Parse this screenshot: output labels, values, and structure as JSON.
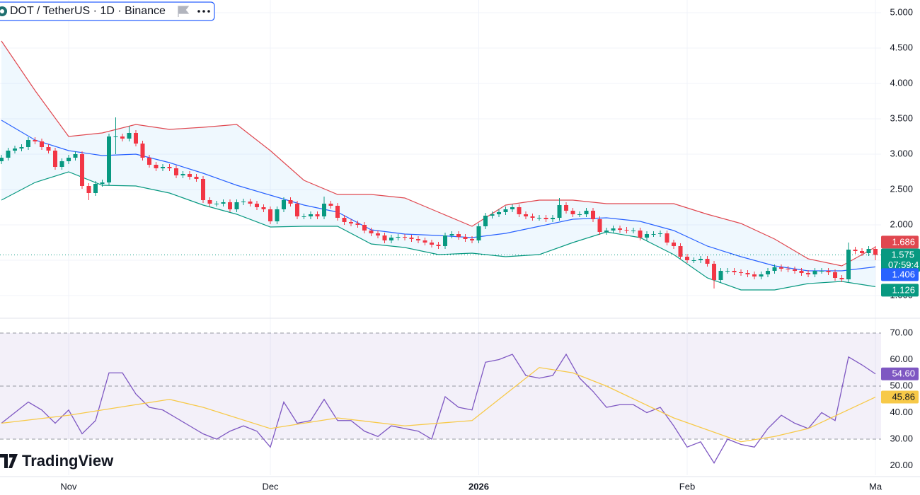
{
  "header": {
    "title": "DOT / TetherUS · 1D · Binance"
  },
  "logo": {
    "text": "TradingView"
  },
  "chart_data": [
    {
      "type": "candlestick",
      "up_color": "#089981",
      "down_color": "#f23645",
      "grid": true,
      "countdown": "07:59:4",
      "xlim": [
        -0.21,
        130.84
      ],
      "xticks": [
        {
          "value": 10,
          "label": "Nov"
        },
        {
          "value": 40,
          "label": "Dec"
        },
        {
          "value": 71,
          "label": "2026"
        },
        {
          "value": 102,
          "label": "Feb"
        },
        {
          "value": 130,
          "label": "Ma"
        }
      ],
      "ylim": [
        0.7,
        5.18
      ],
      "yticks": [
        {
          "value": 1,
          "label": "1.000"
        },
        {
          "value": 1.5,
          "label": "1.500"
        },
        {
          "value": 2,
          "label": "2.000"
        },
        {
          "value": 2.5,
          "label": "2.500"
        },
        {
          "value": 3,
          "label": "3.000"
        },
        {
          "value": 3.5,
          "label": "3.500"
        },
        {
          "value": 4,
          "label": "4.000"
        },
        {
          "value": 4.5,
          "label": "4.500"
        },
        {
          "value": 5,
          "label": "5.000"
        }
      ],
      "open": [
        2.9,
        2.95,
        3.05,
        3.08,
        3.1,
        3.2,
        3.18,
        3.1,
        3.05,
        2.82,
        2.9,
        2.95,
        3.0,
        2.55,
        2.45,
        2.58,
        2.6,
        3.25,
        3.25,
        3.22,
        3.3,
        3.15,
        2.95,
        2.85,
        2.8,
        2.82,
        2.8,
        2.7,
        2.72,
        2.68,
        2.65,
        2.35,
        2.3,
        2.3,
        2.32,
        2.22,
        2.32,
        2.33,
        2.3,
        2.25,
        2.22,
        2.05,
        2.22,
        2.35,
        2.3,
        2.12,
        2.12,
        2.15,
        2.12,
        2.3,
        2.27,
        2.1,
        2.04,
        2.02,
        2.0,
        1.92,
        1.88,
        1.85,
        1.78,
        1.82,
        1.83,
        1.82,
        1.8,
        1.78,
        1.75,
        1.72,
        1.7,
        1.85,
        1.87,
        1.83,
        1.8,
        1.78,
        1.98,
        2.13,
        2.15,
        2.18,
        2.22,
        2.25,
        2.15,
        2.12,
        2.1,
        2.1,
        2.08,
        2.1,
        2.28,
        2.2,
        2.15,
        2.15,
        2.2,
        2.08,
        1.9,
        1.92,
        1.95,
        1.93,
        1.92,
        1.92,
        1.82,
        1.87,
        1.87,
        1.88,
        1.75,
        1.7,
        1.55,
        1.5,
        1.5,
        1.52,
        1.45,
        1.22,
        1.35,
        1.35,
        1.33,
        1.32,
        1.3,
        1.27,
        1.3,
        1.35,
        1.4,
        1.38,
        1.37,
        1.35,
        1.32,
        1.3,
        1.35,
        1.35,
        1.33,
        1.25,
        1.23,
        1.65,
        1.63,
        1.6,
        1.66
      ],
      "high": [
        2.99,
        3.09,
        3.12,
        3.14,
        3.24,
        3.24,
        3.22,
        3.14,
        3.09,
        2.94,
        2.99,
        3.04,
        3.04,
        2.59,
        2.62,
        2.64,
        3.29,
        3.52,
        3.29,
        3.4,
        3.34,
        3.19,
        2.99,
        2.89,
        2.86,
        2.86,
        2.84,
        2.76,
        2.76,
        2.72,
        2.69,
        2.39,
        2.34,
        2.36,
        2.36,
        2.36,
        2.37,
        2.37,
        2.34,
        2.29,
        2.26,
        2.26,
        2.39,
        2.39,
        2.34,
        2.16,
        2.19,
        2.19,
        2.4,
        2.34,
        2.31,
        2.14,
        2.08,
        2.06,
        2.04,
        1.96,
        1.92,
        1.89,
        1.86,
        1.87,
        1.87,
        1.86,
        1.84,
        1.82,
        1.79,
        1.76,
        1.89,
        1.91,
        1.91,
        1.87,
        1.84,
        2.02,
        2.17,
        2.19,
        2.22,
        2.26,
        2.29,
        2.29,
        2.19,
        2.16,
        2.14,
        2.14,
        2.14,
        2.38,
        2.32,
        2.24,
        2.19,
        2.24,
        2.24,
        2.12,
        1.96,
        1.99,
        1.99,
        1.97,
        1.96,
        1.96,
        1.91,
        1.91,
        1.92,
        1.92,
        1.79,
        1.74,
        1.59,
        1.54,
        1.56,
        1.56,
        1.49,
        1.39,
        1.39,
        1.39,
        1.37,
        1.36,
        1.34,
        1.34,
        1.39,
        1.44,
        1.44,
        1.42,
        1.41,
        1.39,
        1.36,
        1.39,
        1.39,
        1.39,
        1.37,
        1.29,
        1.75,
        1.69,
        1.67,
        1.7,
        1.7
      ],
      "low": [
        2.86,
        2.91,
        3.01,
        3.04,
        3.06,
        3.14,
        3.06,
        3.01,
        2.78,
        2.78,
        2.86,
        2.91,
        2.51,
        2.35,
        2.41,
        2.54,
        2.56,
        3.0,
        3.18,
        3.18,
        3.11,
        2.91,
        2.81,
        2.76,
        2.76,
        2.76,
        2.66,
        2.66,
        2.64,
        2.61,
        2.31,
        2.26,
        2.26,
        2.26,
        2.18,
        2.18,
        2.28,
        2.26,
        2.21,
        2.18,
        2.01,
        2.01,
        2.18,
        2.26,
        2.08,
        2.08,
        2.08,
        2.08,
        2.08,
        2.23,
        2.06,
        2.0,
        1.98,
        1.96,
        1.88,
        1.84,
        1.81,
        1.74,
        1.74,
        1.78,
        1.78,
        1.76,
        1.74,
        1.71,
        1.68,
        1.66,
        1.66,
        1.81,
        1.79,
        1.76,
        1.74,
        1.74,
        1.94,
        2.09,
        2.11,
        2.14,
        2.18,
        2.11,
        2.08,
        2.06,
        2.06,
        2.04,
        2.04,
        2.06,
        2.16,
        2.11,
        2.11,
        2.11,
        2.04,
        1.86,
        1.86,
        1.88,
        1.89,
        1.88,
        1.88,
        1.78,
        1.78,
        1.83,
        1.83,
        1.71,
        1.66,
        1.51,
        1.46,
        1.46,
        1.46,
        1.41,
        1.1,
        1.18,
        1.31,
        1.29,
        1.28,
        1.26,
        1.23,
        1.23,
        1.26,
        1.31,
        1.34,
        1.33,
        1.31,
        1.28,
        1.26,
        1.26,
        1.31,
        1.29,
        1.21,
        1.19,
        1.19,
        1.59,
        1.56,
        1.56,
        1.5
      ],
      "close": [
        2.95,
        3.05,
        3.08,
        3.1,
        3.2,
        3.18,
        3.1,
        3.05,
        2.82,
        2.9,
        2.95,
        3.0,
        2.55,
        2.45,
        2.58,
        2.6,
        3.25,
        3.25,
        3.22,
        3.3,
        3.15,
        2.95,
        2.85,
        2.8,
        2.82,
        2.8,
        2.7,
        2.72,
        2.68,
        2.65,
        2.35,
        2.3,
        2.3,
        2.32,
        2.22,
        2.32,
        2.33,
        2.3,
        2.25,
        2.22,
        2.05,
        2.22,
        2.35,
        2.3,
        2.12,
        2.12,
        2.15,
        2.12,
        2.3,
        2.27,
        2.1,
        2.04,
        2.02,
        2.0,
        1.92,
        1.88,
        1.85,
        1.78,
        1.82,
        1.83,
        1.82,
        1.8,
        1.78,
        1.75,
        1.72,
        1.7,
        1.85,
        1.87,
        1.83,
        1.8,
        1.78,
        1.98,
        2.13,
        2.15,
        2.18,
        2.22,
        2.25,
        2.15,
        2.12,
        2.1,
        2.1,
        2.08,
        2.1,
        2.28,
        2.2,
        2.15,
        2.15,
        2.2,
        2.08,
        1.9,
        1.92,
        1.95,
        1.93,
        1.92,
        1.92,
        1.82,
        1.87,
        1.87,
        1.88,
        1.75,
        1.7,
        1.55,
        1.5,
        1.5,
        1.52,
        1.45,
        1.22,
        1.35,
        1.35,
        1.33,
        1.32,
        1.3,
        1.27,
        1.3,
        1.35,
        1.4,
        1.38,
        1.37,
        1.35,
        1.32,
        1.3,
        1.35,
        1.35,
        1.33,
        1.25,
        1.23,
        1.65,
        1.63,
        1.6,
        1.66,
        1.575
      ],
      "bands": {
        "x": [
          0,
          5,
          10,
          15,
          20,
          25,
          30,
          35,
          40,
          45,
          50,
          55,
          60,
          65,
          70,
          75,
          80,
          85,
          90,
          95,
          100,
          105,
          110,
          115,
          120,
          125,
          130
        ],
        "fill": "#2196f3",
        "series": [
          {
            "color": "#e0474f",
            "values": [
              4.6,
              3.9,
              3.25,
              3.3,
              3.42,
              3.35,
              3.38,
              3.42,
              3.05,
              2.63,
              2.43,
              2.43,
              2.38,
              2.18,
              1.98,
              2.28,
              2.35,
              2.35,
              2.3,
              2.3,
              2.3,
              2.15,
              2.02,
              1.8,
              1.52,
              1.42,
              1.686
            ]
          },
          {
            "color": "#2962ff",
            "values": [
              3.48,
              3.2,
              3.05,
              2.98,
              3.0,
              2.88,
              2.73,
              2.56,
              2.42,
              2.28,
              2.18,
              1.93,
              1.87,
              1.85,
              1.82,
              1.88,
              1.98,
              2.08,
              2.1,
              2.05,
              1.92,
              1.7,
              1.55,
              1.42,
              1.35,
              1.35,
              1.406
            ]
          },
          {
            "color": "#089981",
            "values": [
              2.35,
              2.6,
              2.75,
              2.56,
              2.55,
              2.45,
              2.28,
              2.15,
              1.97,
              1.98,
              1.98,
              1.73,
              1.68,
              1.58,
              1.6,
              1.55,
              1.58,
              1.75,
              1.9,
              1.82,
              1.58,
              1.25,
              1.08,
              1.08,
              1.17,
              1.2,
              1.126
            ]
          }
        ]
      }
    },
    {
      "type": "line",
      "xlim": [
        -0.21,
        130.84
      ],
      "ylim": [
        16.4,
        75.07
      ],
      "yticks": [
        {
          "value": 20,
          "label": "20.00"
        },
        {
          "value": 30,
          "label": "30.00"
        },
        {
          "value": 40,
          "label": "40.00"
        },
        {
          "value": 50,
          "label": "50.00"
        },
        {
          "value": 60,
          "label": "60.00"
        },
        {
          "value": 70,
          "label": "70.00"
        }
      ],
      "levels": [
        70,
        50,
        30
      ],
      "level_fill": "#7e57c2",
      "series": [
        {
          "color": "#7e57c2",
          "x": [
            0,
            2,
            4,
            6,
            8,
            10,
            12,
            14,
            16,
            18,
            20,
            22,
            24,
            26,
            28,
            30,
            32,
            34,
            36,
            38,
            40,
            42,
            44,
            46,
            48,
            50,
            52,
            54,
            56,
            58,
            60,
            62,
            64,
            66,
            68,
            70,
            72,
            74,
            76,
            78,
            80,
            82,
            84,
            86,
            88,
            90,
            92,
            94,
            96,
            98,
            100,
            102,
            104,
            106,
            108,
            110,
            112,
            114,
            116,
            118,
            120,
            122,
            124,
            126,
            128,
            130
          ],
          "values": [
            36,
            40,
            44,
            41,
            36,
            41,
            32,
            37,
            55,
            55,
            47,
            42,
            41,
            38,
            35,
            32,
            30,
            33,
            35,
            33,
            27,
            44,
            36,
            37,
            45,
            37,
            37,
            33,
            31,
            35,
            34,
            33,
            30,
            46,
            42,
            41,
            59,
            60,
            62,
            54,
            53,
            54,
            62,
            53,
            48,
            42,
            43,
            43,
            40,
            42,
            35,
            27,
            29,
            21,
            30,
            28,
            27,
            34,
            39,
            36,
            34,
            40,
            37,
            61,
            58,
            54.6
          ],
          "value_labels": [
            null,
            null,
            null,
            null,
            null,
            null,
            null,
            null,
            null,
            null,
            null,
            null,
            null,
            null,
            null,
            null,
            null,
            null,
            null,
            null,
            null,
            null,
            null,
            null,
            null,
            null,
            null,
            null,
            null,
            null,
            null,
            null,
            null,
            null,
            null,
            null,
            null,
            null,
            null,
            null,
            null,
            null,
            null,
            null,
            null,
            null,
            null,
            null,
            null,
            null,
            null,
            null,
            null,
            null,
            null,
            null,
            null,
            null,
            null,
            null,
            null,
            null,
            null,
            null,
            null,
            "54.60"
          ]
        },
        {
          "color": "#f7c948",
          "x": [
            0,
            10,
            20,
            25,
            30,
            40,
            50,
            60,
            70,
            75,
            80,
            85,
            90,
            100,
            110,
            115,
            120,
            130
          ],
          "values": [
            36,
            39,
            43,
            45,
            42,
            34,
            38,
            35,
            37,
            47,
            57,
            55,
            50,
            38,
            29,
            31,
            34,
            45.86
          ]
        }
      ]
    }
  ]
}
